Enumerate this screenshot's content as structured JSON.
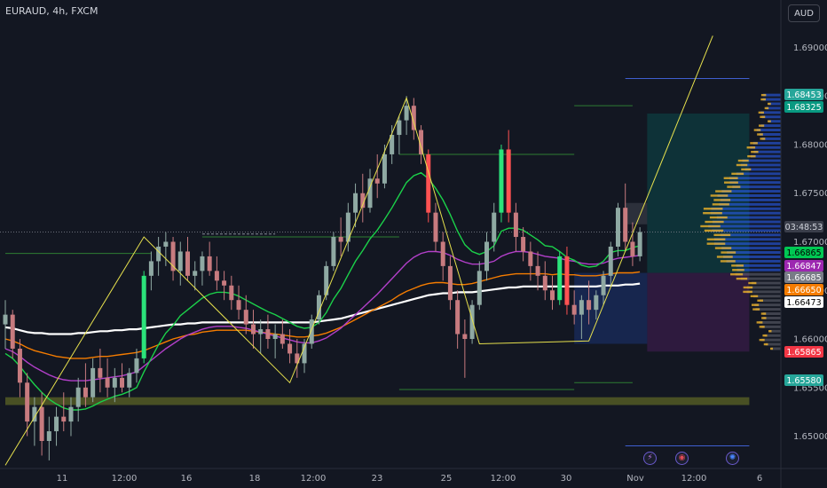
{
  "header": {
    "symbol": "EURAUD, 4h, FXCM",
    "currency_button": "AUD"
  },
  "events": [
    {
      "name": "lightning-event-icon",
      "glyph": "⚡",
      "color": "#c278e6"
    },
    {
      "name": "australia-flag-event-icon",
      "glyph": "◉",
      "color": "#e04b57"
    },
    {
      "name": "eu-flag-event-icon",
      "glyph": "✺",
      "color": "#4a86ff"
    }
  ],
  "chart_data": {
    "type": "candlestick",
    "symbol": "EURAUD",
    "timeframe": "4h",
    "exchange": "FXCM",
    "y_axis": {
      "ticks": [
        "1.69000",
        "1.68500",
        "1.68000",
        "1.67500",
        "1.67000",
        "1.66500",
        "1.66000",
        "1.65500",
        "1.65000"
      ],
      "range": [
        1.6475,
        1.692
      ]
    },
    "x_axis": {
      "ticks": [
        "11",
        "12:00",
        "16",
        "18",
        "12:00",
        "23",
        "25",
        "12:00",
        "30",
        "Nov",
        "12:00",
        "6"
      ]
    },
    "price_labels": [
      {
        "value": "1.68453",
        "bg": "#26a69a",
        "fg": "#ffffff"
      },
      {
        "value": "1.68325",
        "bg": "#089981",
        "fg": "#ffffff"
      },
      {
        "value": "03:48:53",
        "bg": "#3a3e4a",
        "fg": "#d1d4dc"
      },
      {
        "value": "1.66865",
        "bg": "#00c853",
        "fg": "#000000"
      },
      {
        "value": "1.66847",
        "bg": "#9c27b0",
        "fg": "#ffffff"
      },
      {
        "value": "1.66685",
        "bg": "#787b86",
        "fg": "#ffffff"
      },
      {
        "value": "1.66650",
        "bg": "#f57c00",
        "fg": "#ffffff"
      },
      {
        "value": "1.66473",
        "bg": "#ffffff",
        "fg": "#000000"
      },
      {
        "value": "1.65865",
        "bg": "#f23645",
        "fg": "#ffffff"
      },
      {
        "value": "1.65580",
        "bg": "#26a69a",
        "fg": "#ffffff"
      }
    ],
    "candles": [
      [
        1.6615,
        1.664,
        1.659,
        1.6625
      ],
      [
        1.6625,
        1.663,
        1.658,
        1.659
      ],
      [
        1.659,
        1.66,
        1.654,
        1.6555
      ],
      [
        1.6555,
        1.6565,
        1.65,
        1.6515
      ],
      [
        1.6515,
        1.654,
        1.649,
        1.653
      ],
      [
        1.653,
        1.6545,
        1.648,
        1.6495
      ],
      [
        1.6495,
        1.652,
        1.6475,
        1.6505
      ],
      [
        1.6505,
        1.653,
        1.649,
        1.652
      ],
      [
        1.652,
        1.6545,
        1.6505,
        1.6515
      ],
      [
        1.6515,
        1.654,
        1.65,
        1.653
      ],
      [
        1.653,
        1.656,
        1.6515,
        1.655
      ],
      [
        1.655,
        1.6575,
        1.653,
        1.654
      ],
      [
        1.654,
        1.658,
        1.6535,
        1.657
      ],
      [
        1.657,
        1.659,
        1.6545,
        1.656
      ],
      [
        1.656,
        1.658,
        1.654,
        1.655
      ],
      [
        1.655,
        1.657,
        1.6535,
        1.656
      ],
      [
        1.656,
        1.6575,
        1.6545,
        1.655
      ],
      [
        1.655,
        1.657,
        1.654,
        1.6565
      ],
      [
        1.6565,
        1.659,
        1.6555,
        1.658
      ],
      [
        1.658,
        1.667,
        1.6575,
        1.6665
      ],
      [
        1.6665,
        1.669,
        1.665,
        1.668
      ],
      [
        1.668,
        1.6705,
        1.6665,
        1.6695
      ],
      [
        1.6695,
        1.671,
        1.6675,
        1.67
      ],
      [
        1.67,
        1.6705,
        1.666,
        1.667
      ],
      [
        1.667,
        1.67,
        1.6655,
        1.669
      ],
      [
        1.669,
        1.6705,
        1.666,
        1.6665
      ],
      [
        1.6665,
        1.668,
        1.665,
        1.667
      ],
      [
        1.667,
        1.669,
        1.6655,
        1.6685
      ],
      [
        1.6685,
        1.67,
        1.6665,
        1.667
      ],
      [
        1.667,
        1.6685,
        1.665,
        1.666
      ],
      [
        1.666,
        1.667,
        1.664,
        1.6655
      ],
      [
        1.6655,
        1.6665,
        1.663,
        1.664
      ],
      [
        1.664,
        1.6655,
        1.662,
        1.663
      ],
      [
        1.663,
        1.6645,
        1.6605,
        1.6615
      ],
      [
        1.6615,
        1.663,
        1.659,
        1.6605
      ],
      [
        1.6605,
        1.662,
        1.6585,
        1.661
      ],
      [
        1.661,
        1.6625,
        1.659,
        1.66
      ],
      [
        1.66,
        1.6615,
        1.658,
        1.6605
      ],
      [
        1.6605,
        1.662,
        1.659,
        1.6595
      ],
      [
        1.6595,
        1.661,
        1.6575,
        1.6585
      ],
      [
        1.6585,
        1.66,
        1.656,
        1.6575
      ],
      [
        1.6575,
        1.66,
        1.6565,
        1.6595
      ],
      [
        1.6595,
        1.6625,
        1.659,
        1.662
      ],
      [
        1.662,
        1.665,
        1.6615,
        1.6645
      ],
      [
        1.6645,
        1.668,
        1.664,
        1.6675
      ],
      [
        1.6675,
        1.671,
        1.667,
        1.6705
      ],
      [
        1.6705,
        1.6725,
        1.6685,
        1.67
      ],
      [
        1.67,
        1.674,
        1.669,
        1.673
      ],
      [
        1.673,
        1.676,
        1.6715,
        1.675
      ],
      [
        1.675,
        1.677,
        1.672,
        1.6735
      ],
      [
        1.6735,
        1.6775,
        1.673,
        1.6765
      ],
      [
        1.6765,
        1.679,
        1.6745,
        1.676
      ],
      [
        1.676,
        1.68,
        1.6755,
        1.679
      ],
      [
        1.679,
        1.682,
        1.678,
        1.681
      ],
      [
        1.681,
        1.683,
        1.679,
        1.6825
      ],
      [
        1.6825,
        1.685,
        1.681,
        1.684
      ],
      [
        1.684,
        1.6848,
        1.6805,
        1.6815
      ],
      [
        1.6815,
        1.682,
        1.678,
        1.679
      ],
      [
        1.679,
        1.6795,
        1.672,
        1.673
      ],
      [
        1.673,
        1.674,
        1.669,
        1.67
      ],
      [
        1.67,
        1.671,
        1.666,
        1.6675
      ],
      [
        1.6675,
        1.6685,
        1.663,
        1.664
      ],
      [
        1.664,
        1.665,
        1.659,
        1.6605
      ],
      [
        1.6605,
        1.662,
        1.656,
        1.66
      ],
      [
        1.66,
        1.664,
        1.6595,
        1.6635
      ],
      [
        1.6635,
        1.668,
        1.663,
        1.667
      ],
      [
        1.667,
        1.671,
        1.666,
        1.67
      ],
      [
        1.67,
        1.674,
        1.669,
        1.673
      ],
      [
        1.673,
        1.68,
        1.672,
        1.6795
      ],
      [
        1.6795,
        1.6815,
        1.672,
        1.673
      ],
      [
        1.673,
        1.674,
        1.669,
        1.6705
      ],
      [
        1.6705,
        1.6715,
        1.668,
        1.669
      ],
      [
        1.669,
        1.67,
        1.666,
        1.6675
      ],
      [
        1.6675,
        1.669,
        1.665,
        1.6665
      ],
      [
        1.6665,
        1.668,
        1.664,
        1.665
      ],
      [
        1.665,
        1.6665,
        1.663,
        1.664
      ],
      [
        1.664,
        1.669,
        1.6635,
        1.6685
      ],
      [
        1.6685,
        1.6695,
        1.6625,
        1.6635
      ],
      [
        1.6635,
        1.665,
        1.6615,
        1.6625
      ],
      [
        1.6625,
        1.6645,
        1.66,
        1.664
      ],
      [
        1.664,
        1.666,
        1.6615,
        1.663
      ],
      [
        1.663,
        1.665,
        1.662,
        1.6645
      ],
      [
        1.6645,
        1.667,
        1.6635,
        1.6665
      ],
      [
        1.6665,
        1.67,
        1.6655,
        1.6695
      ],
      [
        1.6695,
        1.674,
        1.6685,
        1.6735
      ],
      [
        1.6735,
        1.676,
        1.669,
        1.67
      ],
      [
        1.67,
        1.672,
        1.6675,
        1.6685
      ],
      [
        1.6685,
        1.6715,
        1.668,
        1.671
      ]
    ],
    "moving_averages": [
      {
        "color": "#ffffff",
        "values": [
          1.6612,
          1.6611,
          1.6609,
          1.6607,
          1.6606,
          1.6606,
          1.6605,
          1.6605,
          1.6605,
          1.6605,
          1.6606,
          1.6606,
          1.6607,
          1.6608,
          1.6608,
          1.6609,
          1.6609,
          1.661,
          1.661,
          1.6611,
          1.6612,
          1.6613,
          1.6614,
          1.6615,
          1.6615,
          1.6616,
          1.6616,
          1.6617,
          1.6617,
          1.6617,
          1.6617,
          1.6617,
          1.6617,
          1.6617,
          1.6617,
          1.6617,
          1.6617,
          1.6617,
          1.6617,
          1.6617,
          1.6617,
          1.6617,
          1.6617,
          1.6618,
          1.6619,
          1.662,
          1.6621,
          1.6623,
          1.6625,
          1.6627,
          1.6629,
          1.6631,
          1.6633,
          1.6635,
          1.6637,
          1.6639,
          1.6641,
          1.6643,
          1.6645,
          1.6646,
          1.6647,
          1.6647,
          1.6648,
          1.6648,
          1.6648,
          1.6649,
          1.665,
          1.6651,
          1.6652,
          1.6653,
          1.6653,
          1.6654,
          1.6654,
          1.6654,
          1.6654,
          1.6654,
          1.6654,
          1.6654,
          1.6654,
          1.6654,
          1.6654,
          1.6654,
          1.6655,
          1.6655,
          1.6655,
          1.6656,
          1.6656,
          1.6657
        ]
      },
      {
        "color": "#f57c00",
        "values": [
          1.66,
          1.6598,
          1.6595,
          1.6591,
          1.6588,
          1.6586,
          1.6584,
          1.6582,
          1.6581,
          1.658,
          1.658,
          1.658,
          1.6581,
          1.6582,
          1.6582,
          1.6583,
          1.6584,
          1.6585,
          1.6586,
          1.6588,
          1.6591,
          1.6594,
          1.6597,
          1.66,
          1.6602,
          1.6604,
          1.6605,
          1.6607,
          1.6608,
          1.6609,
          1.6609,
          1.6609,
          1.6609,
          1.6609,
          1.6608,
          1.6607,
          1.6606,
          1.6605,
          1.6604,
          1.6603,
          1.6602,
          1.6602,
          1.6603,
          1.6604,
          1.6606,
          1.6609,
          1.6612,
          1.6616,
          1.662,
          1.6624,
          1.6628,
          1.6632,
          1.6636,
          1.664,
          1.6645,
          1.6649,
          1.6652,
          1.6655,
          1.6657,
          1.6658,
          1.6658,
          1.6657,
          1.6656,
          1.6656,
          1.6657,
          1.6659,
          1.6661,
          1.6663,
          1.6665,
          1.6666,
          1.6667,
          1.6667,
          1.6667,
          1.6667,
          1.6667,
          1.6666,
          1.6667,
          1.6666,
          1.6666,
          1.6665,
          1.6665,
          1.6665,
          1.6666,
          1.6667,
          1.6668,
          1.6668,
          1.6668,
          1.6669
        ]
      },
      {
        "color": "#b23fc9",
        "values": [
          1.659,
          1.6587,
          1.6582,
          1.6576,
          1.6571,
          1.6567,
          1.6563,
          1.656,
          1.6558,
          1.6557,
          1.6557,
          1.6557,
          1.6558,
          1.6559,
          1.656,
          1.6561,
          1.6562,
          1.6564,
          1.6566,
          1.6572,
          1.6578,
          1.6584,
          1.659,
          1.6595,
          1.66,
          1.6604,
          1.6607,
          1.661,
          1.6612,
          1.6613,
          1.6613,
          1.6613,
          1.6612,
          1.6611,
          1.6609,
          1.6607,
          1.6605,
          1.6603,
          1.6601,
          1.6599,
          1.6597,
          1.6596,
          1.6596,
          1.6598,
          1.6601,
          1.6606,
          1.6611,
          1.6618,
          1.6625,
          1.6632,
          1.6639,
          1.6646,
          1.6654,
          1.6662,
          1.667,
          1.6678,
          1.6684,
          1.6688,
          1.669,
          1.669,
          1.6689,
          1.6686,
          1.6682,
          1.6679,
          1.6677,
          1.6677,
          1.6678,
          1.668,
          1.6685,
          1.6688,
          1.669,
          1.669,
          1.6689,
          1.6687,
          1.6685,
          1.6684,
          1.6683,
          1.6681,
          1.668,
          1.6678,
          1.6677,
          1.6677,
          1.6678,
          1.6681,
          1.6683,
          1.6684,
          1.6685,
          1.6686
        ]
      },
      {
        "color": "#1bd14a",
        "values": [
          1.6585,
          1.658,
          1.6572,
          1.6562,
          1.6553,
          1.6545,
          1.6538,
          1.6533,
          1.6529,
          1.6527,
          1.6527,
          1.6528,
          1.6531,
          1.6535,
          1.6538,
          1.6541,
          1.6543,
          1.6546,
          1.655,
          1.6566,
          1.658,
          1.6594,
          1.6606,
          1.6614,
          1.6624,
          1.663,
          1.6636,
          1.6642,
          1.6646,
          1.6648,
          1.6648,
          1.6647,
          1.6644,
          1.664,
          1.6636,
          1.6632,
          1.6628,
          1.6625,
          1.6621,
          1.6617,
          1.6613,
          1.6611,
          1.6612,
          1.6617,
          1.6627,
          1.6641,
          1.6652,
          1.6666,
          1.668,
          1.6691,
          1.6703,
          1.6712,
          1.6723,
          1.6735,
          1.6748,
          1.6761,
          1.6768,
          1.6771,
          1.6765,
          1.6755,
          1.6743,
          1.6728,
          1.6711,
          1.6697,
          1.669,
          1.6687,
          1.669,
          1.6696,
          1.6711,
          1.6714,
          1.6714,
          1.6712,
          1.6707,
          1.6702,
          1.6696,
          1.6695,
          1.669,
          1.6684,
          1.6681,
          1.6676,
          1.6674,
          1.6675,
          1.668,
          1.6689,
          1.6691,
          1.6691,
          1.6694,
          1.6696
        ]
      }
    ],
    "zigzag": [
      [
        0,
        1.647
      ],
      [
        19,
        1.6705
      ],
      [
        39,
        1.6555
      ],
      [
        55,
        1.6848
      ],
      [
        65,
        1.6595
      ],
      [
        80,
        1.6598
      ],
      [
        97,
        1.6912
      ]
    ],
    "horizontal_levels": [
      {
        "value": 1.6688,
        "from": 0,
        "to": 20,
        "color": "#2e7d32"
      },
      {
        "value": 1.6708,
        "from": 27,
        "to": 37,
        "color": "#8a8f9a",
        "dash": true
      },
      {
        "value": 1.6705,
        "from": 27,
        "to": 54,
        "color": "#2e7d32"
      },
      {
        "value": 1.679,
        "from": 54,
        "to": 78,
        "color": "#2e7d32"
      },
      {
        "value": 1.684,
        "from": 78,
        "to": 86,
        "color": "#2e7d32"
      },
      {
        "value": 1.6548,
        "from": 54,
        "to": 78,
        "color": "#2e7d32"
      },
      {
        "value": 1.6555,
        "from": 78,
        "to": 86,
        "color": "#2e7d32"
      },
      {
        "value": 1.6868,
        "from": 85,
        "to": 102,
        "color": "#3f5fd0"
      },
      {
        "value": 1.649,
        "from": 85,
        "to": 102,
        "color": "#3f5fd0"
      }
    ],
    "zones": [
      {
        "from_value": 1.654,
        "to_value": 1.6532,
        "from": 0,
        "to": 102,
        "color": "rgba(140,150,40,0.45)"
      },
      {
        "from_value": 1.6832,
        "to_value": 1.6668,
        "from": 88,
        "to": 102,
        "color": "rgba(0,150,136,0.22)"
      },
      {
        "from_value": 1.6668,
        "to_value": 1.6587,
        "from": 88,
        "to": 102,
        "color": "rgba(156,39,176,0.20)"
      },
      {
        "from_value": 1.6668,
        "to_value": 1.6595,
        "from": 78,
        "to": 88,
        "color": "rgba(41,98,255,0.20)"
      },
      {
        "from_value": 1.674,
        "to_value": 1.6718,
        "from": 85,
        "to": 88,
        "color": "rgba(120,123,134,0.25)"
      }
    ],
    "grid": false,
    "volume_profile": true
  }
}
